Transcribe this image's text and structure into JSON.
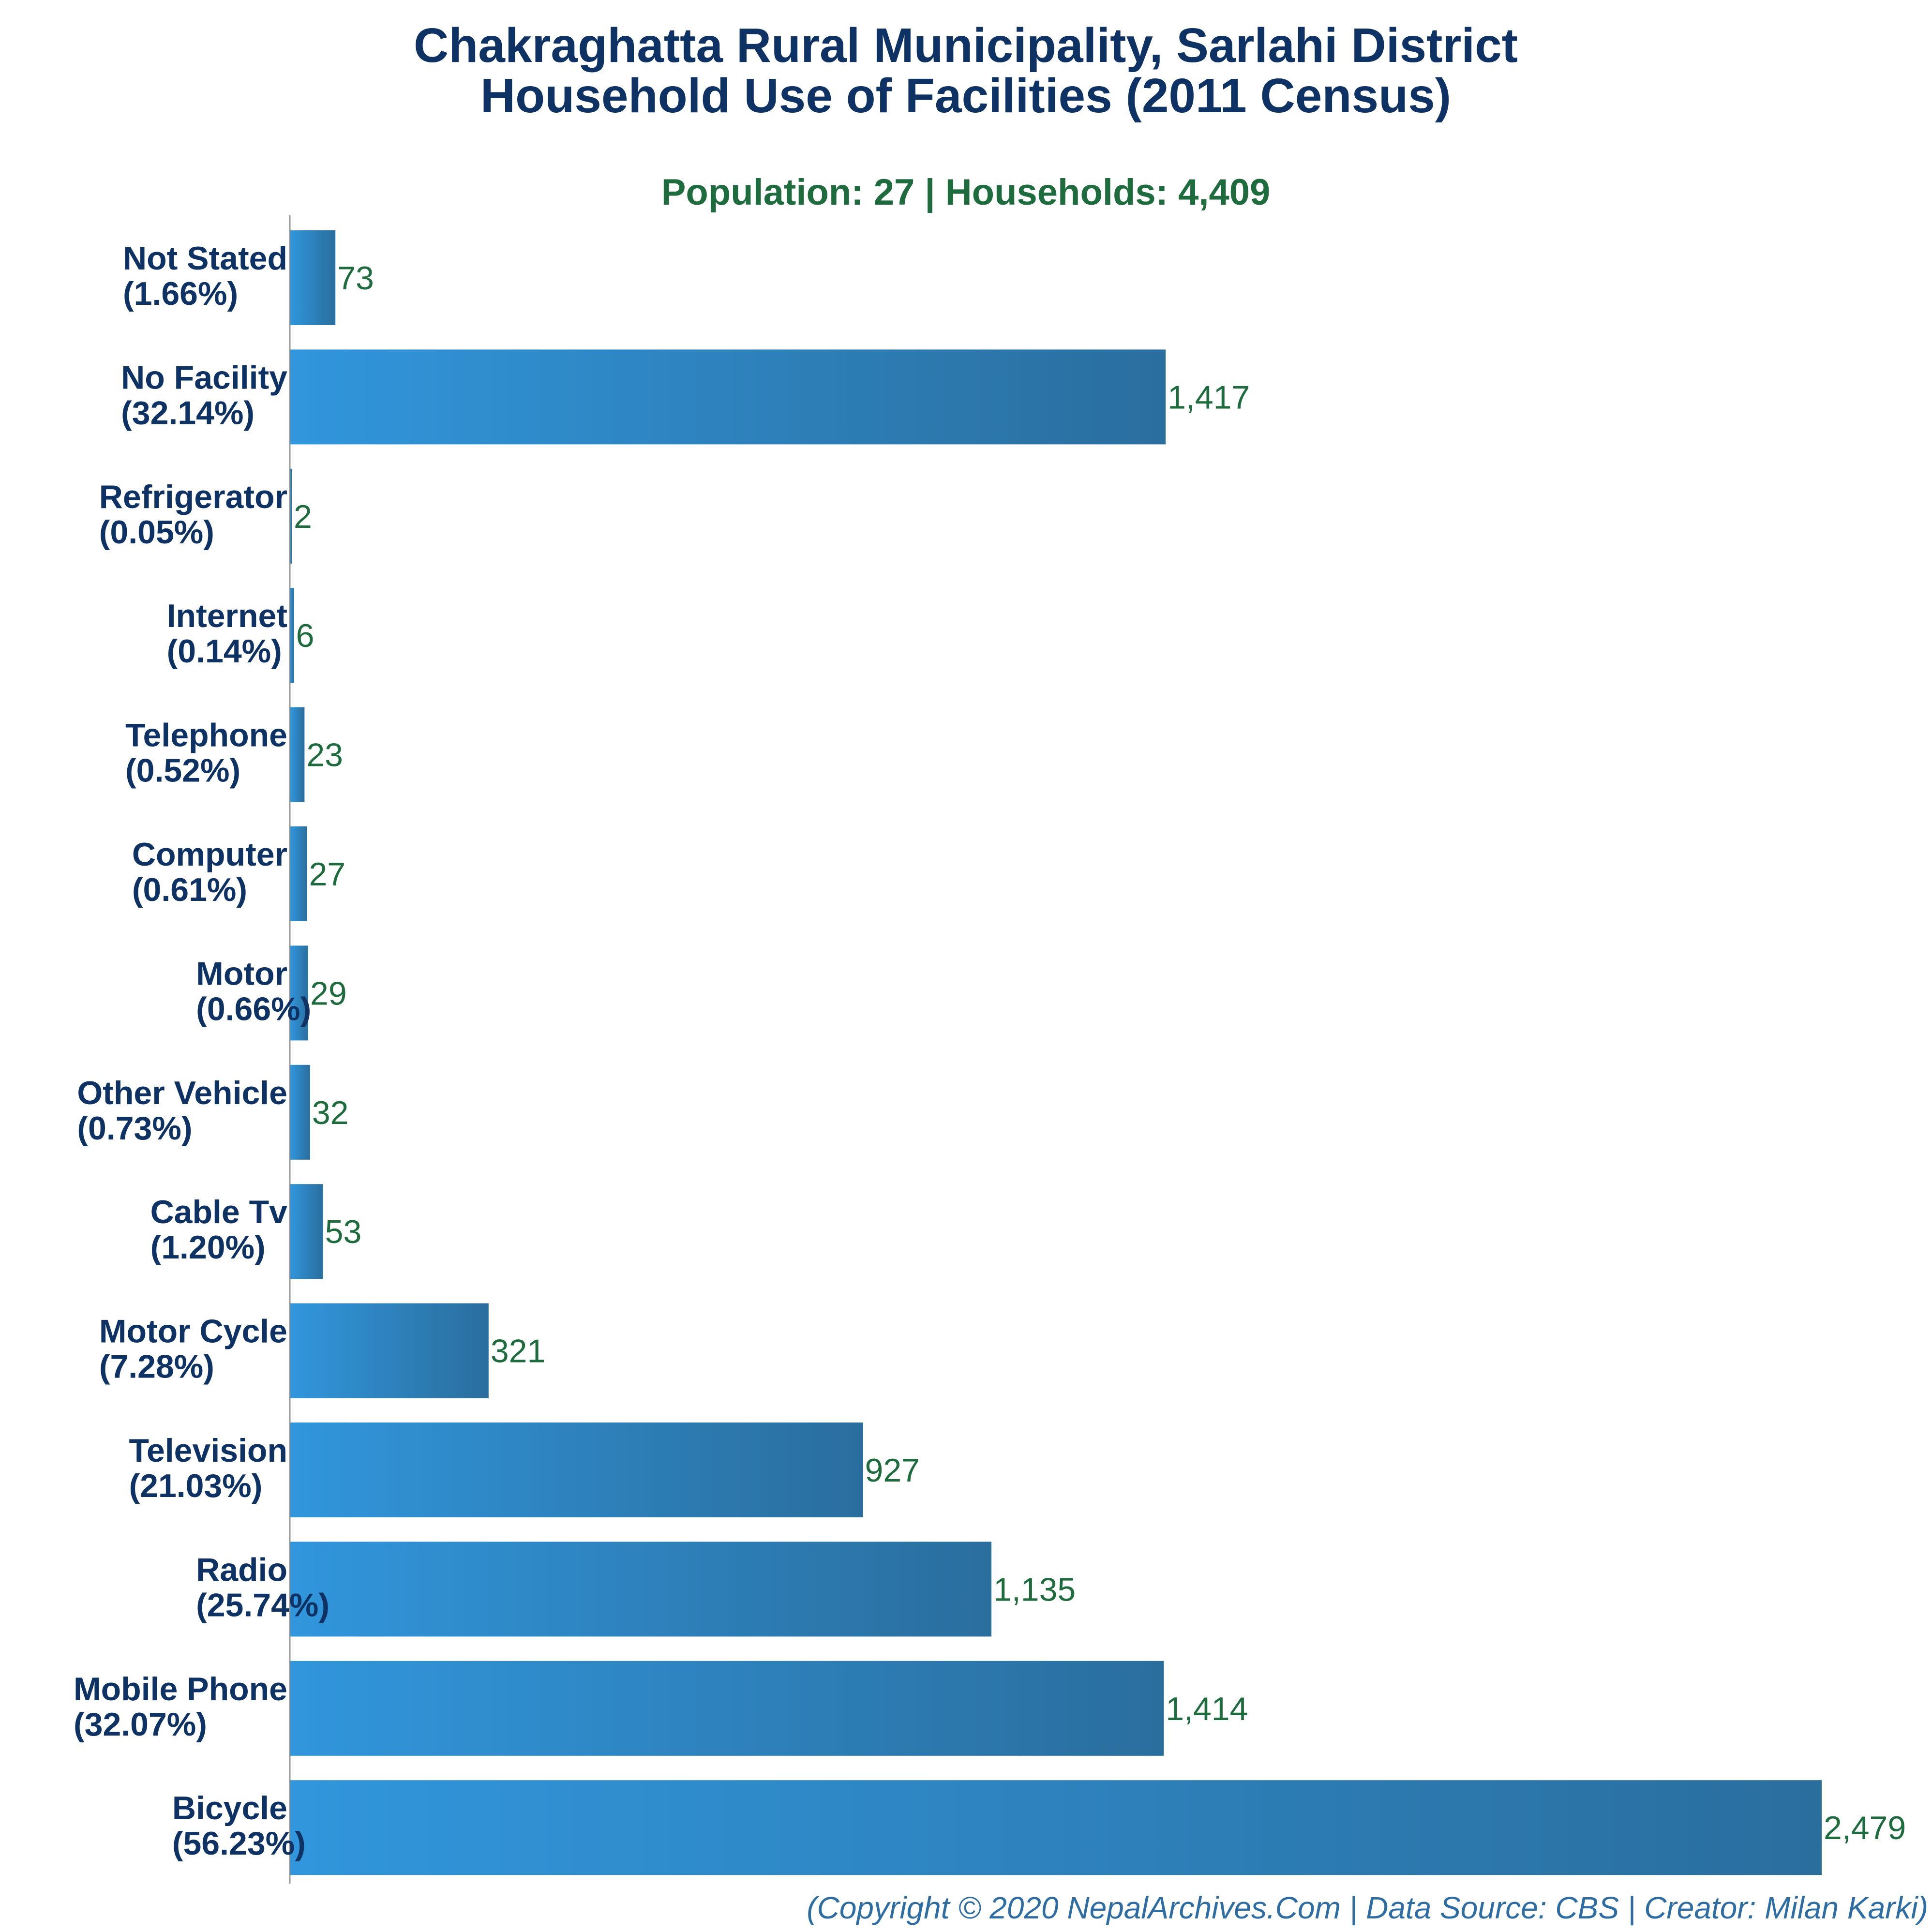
{
  "chart_data": {
    "type": "bar",
    "orientation": "horizontal",
    "title": "Chakraghatta Rural Municipality, Sarlahi District",
    "title_line2": "Household Use of Facilities (2011 Census)",
    "subtitle": "Population: 27 | Households: 4,409",
    "categories": [
      "Not Stated",
      "No Facility",
      "Refrigerator",
      "Internet",
      "Telephone",
      "Computer",
      "Motor",
      "Other Vehicle",
      "Cable Tv",
      "Motor Cycle",
      "Television",
      "Radio",
      "Mobile Phone",
      "Bicycle"
    ],
    "percentages": [
      "(1.66%)",
      "(32.14%)",
      "(0.05%)",
      "(0.14%)",
      "(0.52%)",
      "(0.61%)",
      "(0.66%)",
      "(0.73%)",
      "(1.20%)",
      "(7.28%)",
      "(21.03%)",
      "(25.74%)",
      "(32.07%)",
      "(56.23%)"
    ],
    "values": [
      73,
      1417,
      2,
      6,
      23,
      27,
      29,
      32,
      53,
      321,
      927,
      1135,
      1414,
      2479
    ],
    "value_labels": [
      "73",
      "1,417",
      "2",
      "6",
      "23",
      "27",
      "29",
      "32",
      "53",
      "321",
      "927",
      "1,135",
      "1,414",
      "2,479"
    ],
    "xlim": [
      0,
      2479
    ],
    "grid": false,
    "legend": "none",
    "footer": "(Copyright © 2020 NepalArchives.Com | Data Source: CBS | Creator: Milan Karki)",
    "colors": {
      "title": "#0d3263",
      "subtitle": "#1e6b3d",
      "category_label": "#0d3263",
      "value_label": "#1e6b3d",
      "bar_start": "#3196dc",
      "bar_end": "#2a6e9e",
      "axis": "#999999",
      "footer": "#2e6da4"
    }
  }
}
